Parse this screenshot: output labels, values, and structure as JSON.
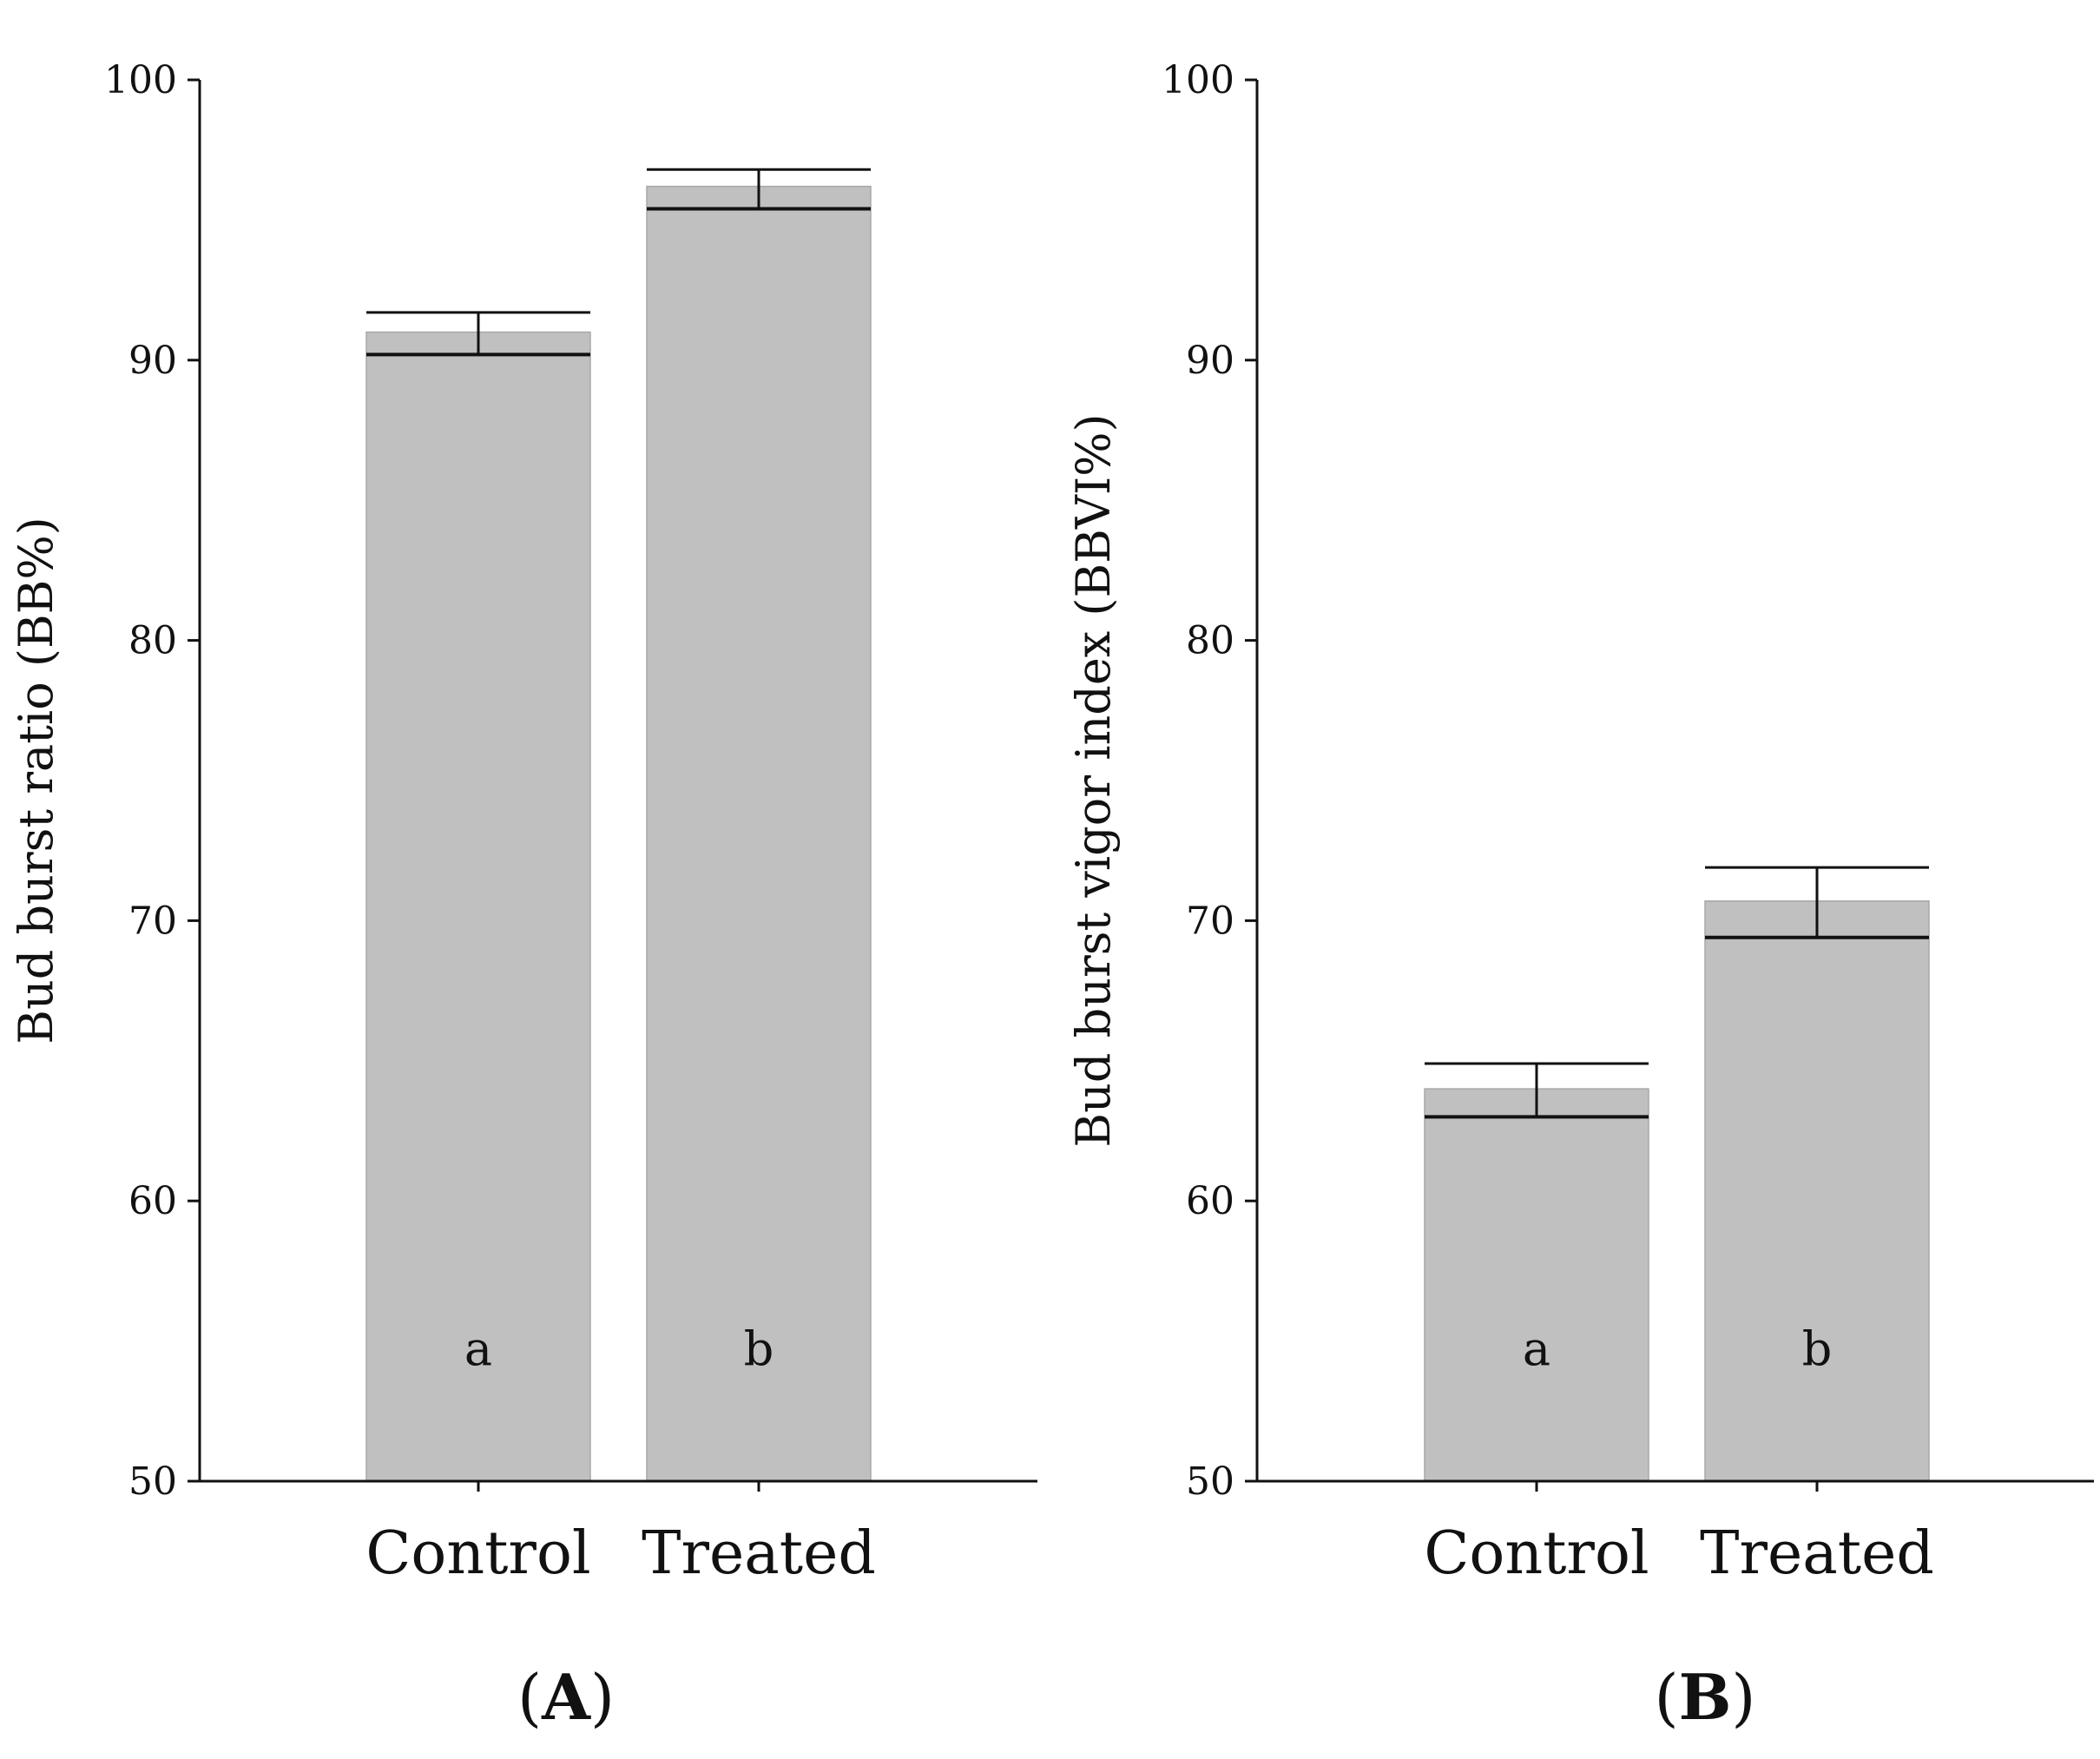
{
  "chart_data": [
    {
      "type": "bar",
      "panel_label": "A",
      "categories": [
        "Control",
        "Treated"
      ],
      "values": [
        91,
        96.2
      ],
      "error_minus": [
        0.8,
        0.8
      ],
      "error_plus": [
        0.7,
        0.6
      ],
      "significance_letters": [
        "a",
        "b"
      ],
      "title": "",
      "xlabel": "",
      "ylabel": "Bud burst ratio (BB%)",
      "ylim": [
        50,
        100
      ],
      "yticks": [
        50,
        60,
        70,
        80,
        90,
        100
      ],
      "bar_color": "#c0c0c0",
      "grid": false
    },
    {
      "type": "bar",
      "panel_label": "B",
      "categories": [
        "Control",
        "Treated"
      ],
      "values": [
        64,
        70.7
      ],
      "error_minus": [
        1.0,
        1.3
      ],
      "error_plus": [
        0.9,
        1.2
      ],
      "significance_letters": [
        "a",
        "b"
      ],
      "title": "",
      "xlabel": "",
      "ylabel": "Bud burst vigor index (BBVI%)",
      "ylim": [
        50,
        100
      ],
      "yticks": [
        50,
        60,
        70,
        80,
        90,
        100
      ],
      "bar_color": "#c0c0c0",
      "grid": false
    }
  ]
}
